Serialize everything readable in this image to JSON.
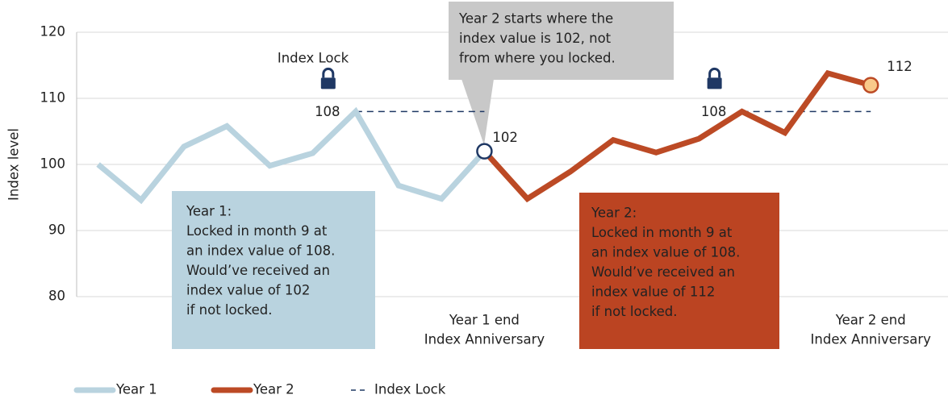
{
  "chart_data": {
    "type": "line",
    "y_label": "Index level",
    "ylim": [
      80,
      120
    ],
    "yticks": [
      80,
      90,
      100,
      110,
      120
    ],
    "xlim": [
      -0.5,
      19.8
    ],
    "grid": true,
    "series": [
      {
        "name": "Year 1",
        "color": "#b9d3df",
        "x": [
          0,
          1,
          2,
          3,
          4,
          5,
          6,
          7,
          8,
          9
        ],
        "values": [
          100,
          94.6,
          102.7,
          105.8,
          99.8,
          101.7,
          108,
          96.8,
          94.8,
          102
        ]
      },
      {
        "name": "Year 2",
        "color": "#bc4a25",
        "x": [
          9,
          10,
          11,
          12,
          13,
          14,
          15,
          16,
          17,
          18
        ],
        "values": [
          102,
          94.8,
          98.9,
          103.7,
          101.8,
          103.9,
          108,
          104.8,
          113.8,
          112
        ]
      }
    ],
    "x_labels": [
      {
        "x": 9,
        "lines": [
          "Year 1 end",
          "Index Anniversary"
        ]
      },
      {
        "x": 18,
        "lines": [
          "Year 2 end",
          "Index Anniversary"
        ]
      }
    ],
    "lock_name": "Index Lock",
    "lock_color": "#1f3864",
    "locks": [
      {
        "x": 6,
        "x_end": 9,
        "value": 108
      },
      {
        "x": 15,
        "x_end": 18,
        "value": 108
      }
    ],
    "annotations": {
      "index_lock": "Index Lock",
      "callout": [
        "Year 2 starts where the",
        "index value is 102, not",
        "from where you locked."
      ],
      "year1_box": [
        "Year 1:",
        "Locked in month 9 at",
        "an index value of 108.",
        "Would’ve received an",
        "index value of 102",
        "if not locked."
      ],
      "year2_box": [
        "Year 2:",
        "Locked in month 9 at",
        "an index value of 108.",
        "Would’ve received an",
        "index value of 112",
        "if not locked."
      ]
    }
  }
}
